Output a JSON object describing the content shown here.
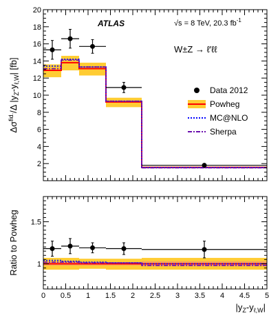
{
  "chart_data": [
    {
      "type": "line",
      "panel": "main",
      "ylabel": "Δσ^fid. / Δ |y_Z − y_ℓ,W| [fb]",
      "ylim": [
        0,
        20
      ],
      "xlim": [
        0,
        5
      ],
      "yticks": [
        "2",
        "4",
        "6",
        "8",
        "10",
        "12",
        "14",
        "16",
        "18",
        "20"
      ],
      "annotations": {
        "experiment": "ATLAS",
        "energy": "√s = 8 TeV, 20.3 fb",
        "energy_sup": "-1",
        "process": "W±Z → ℓ′ℓℓ"
      },
      "legend": {
        "placement": "top-right",
        "entries": [
          "Data 2012",
          "Powheg",
          "MC@NLO",
          "Sherpa"
        ]
      },
      "bins": [
        [
          0,
          0.4
        ],
        [
          0.4,
          0.8
        ],
        [
          0.8,
          1.4
        ],
        [
          1.4,
          2.2
        ],
        [
          2.2,
          5.0
        ]
      ],
      "series": [
        {
          "name": "Data 2012",
          "x": [
            0.2,
            0.6,
            1.1,
            1.8,
            3.6
          ],
          "values": [
            15.3,
            16.6,
            15.7,
            10.9,
            1.8
          ],
          "xerr": [
            0.2,
            0.2,
            0.3,
            0.4,
            1.4
          ],
          "yerr": [
            1.1,
            1.1,
            0.8,
            0.6,
            0.1
          ]
        },
        {
          "name": "Powheg",
          "values": [
            12.9,
            13.8,
            13.1,
            9.2,
            1.55
          ],
          "band_low": [
            12.1,
            12.9,
            12.3,
            8.6,
            1.45
          ],
          "band_high": [
            13.6,
            14.6,
            13.8,
            9.7,
            1.65
          ]
        },
        {
          "name": "MC@NLO",
          "values": [
            13.4,
            14.2,
            13.3,
            9.3,
            1.55
          ]
        },
        {
          "name": "Sherpa",
          "values": [
            13.1,
            14.1,
            13.3,
            9.3,
            1.5
          ]
        }
      ],
      "colors": {
        "data": "#000000",
        "powheg_line": "#ff0000",
        "powheg_band": "#ffcc33",
        "mcnlo": "#0000ff",
        "sherpa": "#6a0dad"
      }
    },
    {
      "type": "line",
      "panel": "ratio",
      "ylabel": "Ratio to Powheg",
      "xlabel": "|y_Z − y_ℓ,W|",
      "xlim": [
        0,
        5
      ],
      "ylim": [
        0.7,
        1.8
      ],
      "yticks": [
        "1",
        "1.5"
      ],
      "xticks": [
        "0",
        "0.5",
        "1",
        "1.5",
        "2",
        "2.5",
        "3",
        "3.5",
        "4",
        "4.5",
        "5"
      ],
      "bins": [
        [
          0,
          0.4
        ],
        [
          0.4,
          0.8
        ],
        [
          0.8,
          1.4
        ],
        [
          1.4,
          2.2
        ],
        [
          2.2,
          5.0
        ]
      ],
      "series": [
        {
          "name": "Data 2012",
          "x": [
            0.2,
            0.6,
            1.1,
            1.8,
            3.6
          ],
          "values": [
            1.18,
            1.21,
            1.19,
            1.18,
            1.17
          ],
          "xerr": [
            0.2,
            0.2,
            0.3,
            0.4,
            1.4
          ],
          "yerr": [
            0.09,
            0.09,
            0.06,
            0.07,
            0.1
          ]
        },
        {
          "name": "Powheg",
          "values": [
            1.0,
            1.0,
            1.0,
            1.0,
            1.0
          ],
          "band_low": [
            0.93,
            0.93,
            0.94,
            0.93,
            0.93
          ],
          "band_high": [
            1.07,
            1.07,
            1.06,
            1.06,
            1.07
          ],
          "band_inner_low": [
            0.98,
            0.98,
            0.98,
            0.98,
            0.97
          ],
          "band_inner_high": [
            1.02,
            1.02,
            1.02,
            1.02,
            1.03
          ]
        },
        {
          "name": "MC@NLO",
          "values": [
            1.04,
            1.03,
            1.02,
            1.01,
            1.0
          ]
        },
        {
          "name": "Sherpa",
          "values": [
            1.02,
            1.02,
            1.01,
            1.01,
            0.98
          ]
        }
      ]
    }
  ]
}
